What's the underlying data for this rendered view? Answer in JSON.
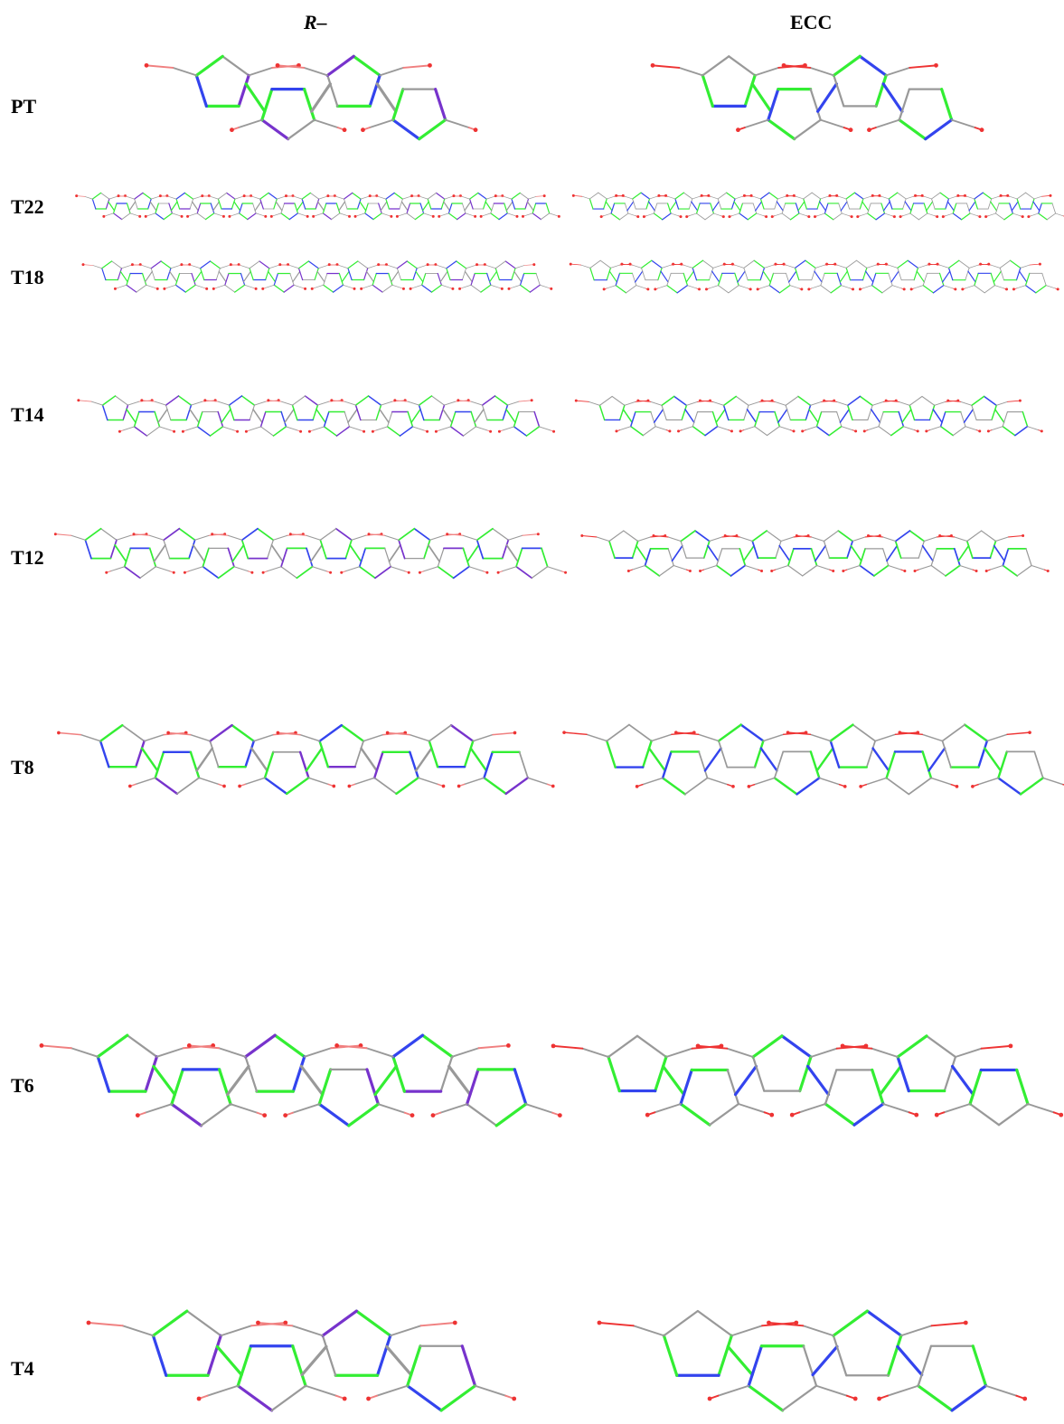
{
  "columns": {
    "left": "R–",
    "right": "ECC"
  },
  "rows": [
    {
      "label": "PT",
      "rings": 4,
      "scale": 1.0
    },
    {
      "label": "T22",
      "rings": 22,
      "scale": 0.3
    },
    {
      "label": "T18",
      "rings": 18,
      "scale": 0.36
    },
    {
      "label": "T14",
      "rings": 14,
      "scale": 0.46
    },
    {
      "label": "T12",
      "rings": 12,
      "scale": 0.54
    },
    {
      "label": "T8",
      "rings": 8,
      "scale": 0.76
    },
    {
      "label": "T6",
      "rings": 6,
      "scale": 1.0
    },
    {
      "label": "T4",
      "rings": 4,
      "scale": 1.0
    }
  ],
  "colors": {
    "gray": "#999999",
    "green": "#33ee33",
    "blue": "#3344ee",
    "purple": "#7733cc",
    "red": "#ee3333",
    "pink": "#f08080"
  }
}
